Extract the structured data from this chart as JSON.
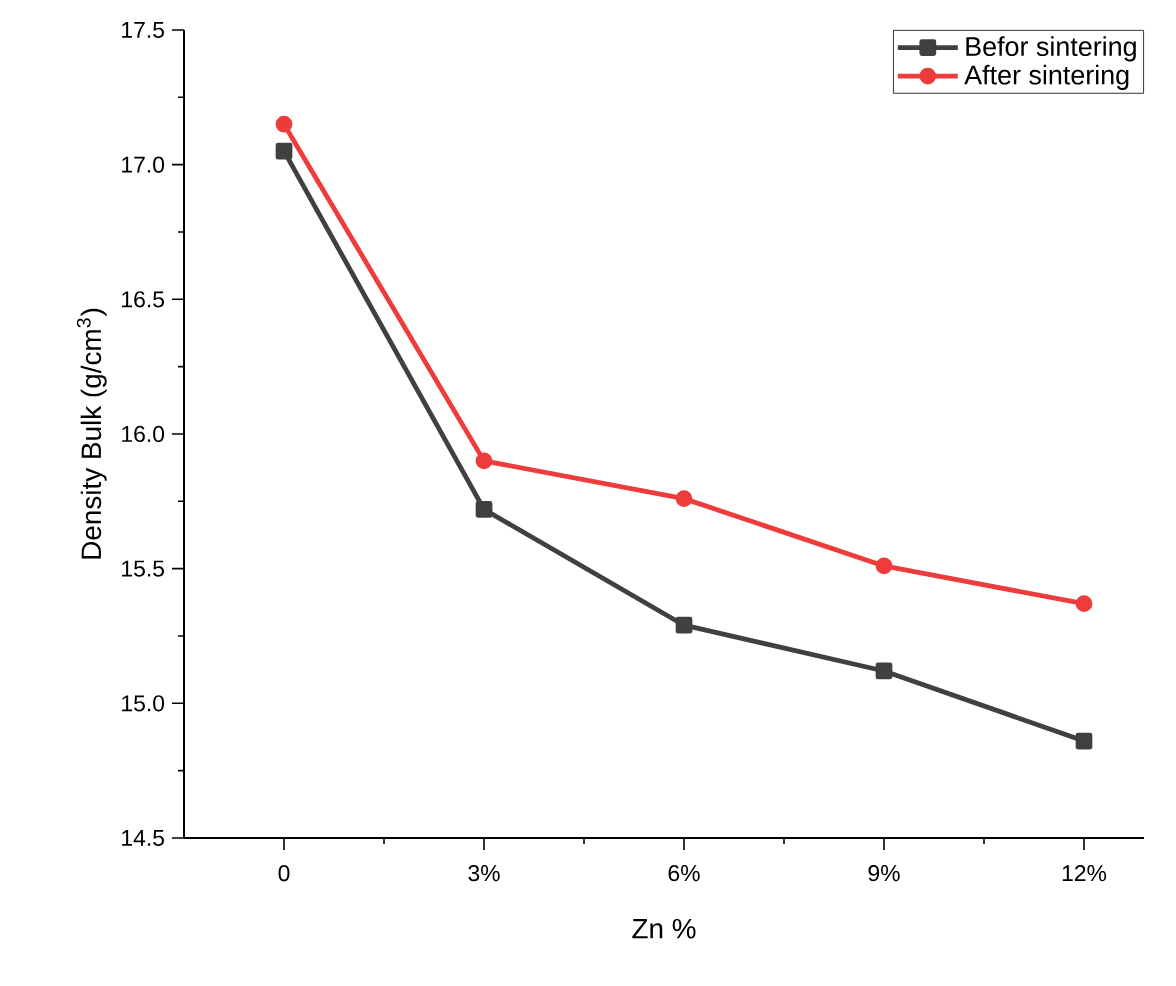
{
  "chart_data": {
    "type": "line",
    "xlabel": "Zn %",
    "ylabel": "Density Bulk (g/cm$^{3}$)",
    "categories": [
      "0",
      "3%",
      "6%",
      "9%",
      "12%"
    ],
    "series": [
      {
        "name": "Befor sintering",
        "color": "#404040",
        "marker": "square",
        "values": [
          17.05,
          15.72,
          15.29,
          15.12,
          14.86
        ]
      },
      {
        "name": "After sintering",
        "color": "#ee3b3b",
        "marker": "circle",
        "values": [
          17.15,
          15.9,
          15.76,
          15.51,
          15.37
        ]
      }
    ],
    "ylim": [
      14.5,
      17.5
    ],
    "yticks": [
      {
        "value": 14.5,
        "label": "14.5"
      },
      {
        "value": 15,
        "label": "15.0"
      },
      {
        "value": 15.5,
        "label": "15.5"
      },
      {
        "value": 16,
        "label": "16.0"
      },
      {
        "value": 16.5,
        "label": "16.5"
      },
      {
        "value": 17,
        "label": "17.0"
      },
      {
        "value": 17.5,
        "label": "17.5"
      }
    ],
    "legend": "top right",
    "grid": false,
    "line_style": "solid"
  }
}
